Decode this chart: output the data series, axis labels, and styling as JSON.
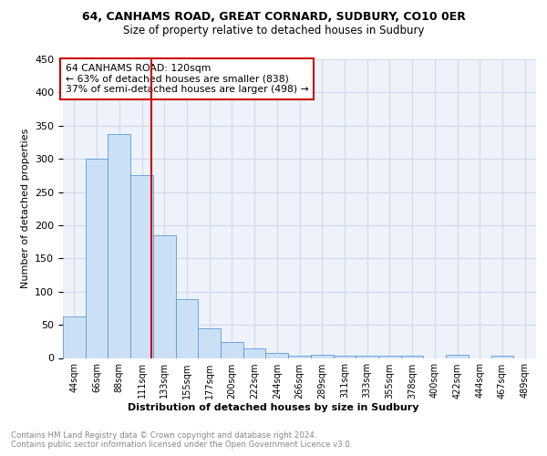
{
  "title1": "64, CANHAMS ROAD, GREAT CORNARD, SUDBURY, CO10 0ER",
  "title2": "Size of property relative to detached houses in Sudbury",
  "xlabel": "Distribution of detached houses by size in Sudbury",
  "ylabel": "Number of detached properties",
  "bin_labels": [
    "44sqm",
    "66sqm",
    "88sqm",
    "111sqm",
    "133sqm",
    "155sqm",
    "177sqm",
    "200sqm",
    "222sqm",
    "244sqm",
    "266sqm",
    "289sqm",
    "311sqm",
    "333sqm",
    "355sqm",
    "378sqm",
    "400sqm",
    "422sqm",
    "444sqm",
    "467sqm",
    "489sqm"
  ],
  "bar_heights": [
    62,
    300,
    338,
    275,
    185,
    88,
    45,
    24,
    14,
    7,
    4,
    5,
    4,
    3,
    3,
    3,
    0,
    5,
    0,
    4,
    0
  ],
  "bar_color": "#cce0f5",
  "bar_edge_color": "#5b9bd5",
  "grid_color": "#d0d8e8",
  "annotation_line_color": "#cc0000",
  "annotation_box_text": "64 CANHAMS ROAD: 120sqm\n← 63% of detached houses are smaller (838)\n37% of semi-detached houses are larger (498) →",
  "annotation_box_color": "white",
  "annotation_box_edge_color": "#cc0000",
  "footer_text": "Contains HM Land Registry data © Crown copyright and database right 2024.\nContains public sector information licensed under the Open Government Licence v3.0.",
  "ylim": [
    0,
    450
  ],
  "yticks": [
    0,
    50,
    100,
    150,
    200,
    250,
    300,
    350,
    400,
    450
  ],
  "background_color": "#eef2fa"
}
